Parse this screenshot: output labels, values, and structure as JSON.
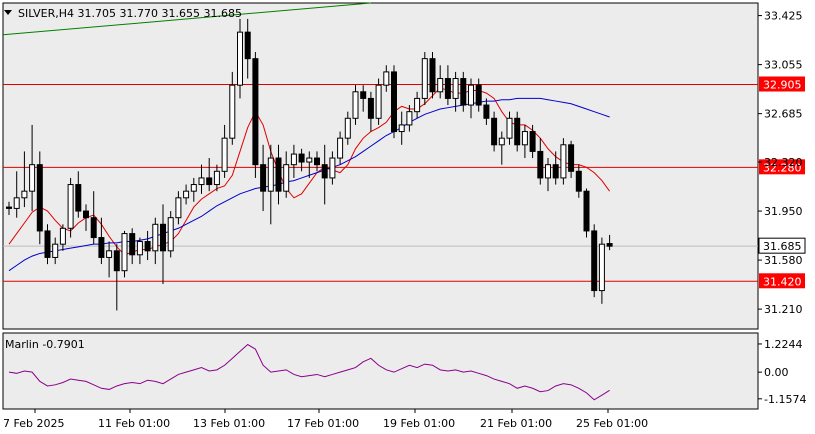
{
  "header": {
    "symbol_line": "SILVER,H4  31.705 31.770 31.655 31.685"
  },
  "indicator": {
    "label": "Marlin -0.7901"
  },
  "colors": {
    "background": "#ffffff",
    "plot_bg": "#ececec",
    "level_line": "#e00000",
    "level_label_bg": "#ff0000",
    "ma_fast": "#e00000",
    "ma_slow": "#0000cc",
    "trend_line": "#008000",
    "oscillator": "#8b008b",
    "price_label_bg": "#ffffff"
  },
  "chart_data": [
    {
      "type": "candlestick",
      "title": "SILVER,H4",
      "ohlc_current": {
        "open": 31.705,
        "high": 31.77,
        "low": 31.655,
        "close": 31.685
      },
      "y_ticks": [
        "33.425",
        "33.055",
        "32.685",
        "32.320",
        "31.950",
        "31.580",
        "31.210"
      ],
      "ylim": [
        31.06,
        33.52
      ],
      "x_ticks": [
        "7 Feb 2025",
        "11 Feb 01:00",
        "13 Feb 01:00",
        "17 Feb 01:00",
        "19 Feb 01:00",
        "21 Feb 01:00",
        "25 Feb 01:00"
      ],
      "horizontal_levels": [
        {
          "value": 32.905,
          "label": "32.905"
        },
        {
          "value": 32.28,
          "label": "32.280"
        },
        {
          "value": 31.42,
          "label": "31.420"
        }
      ],
      "current_price": {
        "value": 31.685,
        "label": "31.685"
      },
      "candles": [
        [
          31.98,
          32.02,
          31.92,
          31.97
        ],
        [
          31.97,
          32.25,
          31.9,
          32.05
        ],
        [
          32.05,
          32.4,
          31.98,
          32.1
        ],
        [
          32.1,
          32.6,
          31.95,
          32.3
        ],
        [
          32.3,
          32.4,
          31.7,
          31.8
        ],
        [
          31.8,
          31.85,
          31.55,
          31.6
        ],
        [
          31.6,
          31.75,
          31.55,
          31.7
        ],
        [
          31.7,
          31.85,
          31.65,
          31.82
        ],
        [
          31.82,
          32.2,
          31.75,
          32.15
        ],
        [
          32.15,
          32.25,
          31.9,
          31.95
        ],
        [
          31.95,
          32.0,
          31.8,
          31.9
        ],
        [
          31.9,
          32.1,
          31.7,
          31.75
        ],
        [
          31.75,
          31.9,
          31.55,
          31.6
        ],
        [
          31.6,
          31.72,
          31.45,
          31.65
        ],
        [
          31.65,
          31.7,
          31.2,
          31.5
        ],
        [
          31.5,
          31.8,
          31.45,
          31.78
        ],
        [
          31.78,
          31.82,
          31.55,
          31.62
        ],
        [
          31.62,
          31.75,
          31.55,
          31.72
        ],
        [
          31.72,
          31.8,
          31.58,
          31.65
        ],
        [
          31.65,
          31.9,
          31.55,
          31.85
        ],
        [
          31.85,
          32.0,
          31.4,
          31.65
        ],
        [
          31.65,
          31.95,
          31.6,
          31.9
        ],
        [
          31.9,
          32.1,
          31.85,
          32.05
        ],
        [
          32.05,
          32.15,
          32.0,
          32.1
        ],
        [
          32.1,
          32.2,
          32.02,
          32.15
        ],
        [
          32.15,
          32.3,
          32.08,
          32.2
        ],
        [
          32.2,
          32.35,
          32.1,
          32.15
        ],
        [
          32.15,
          32.3,
          32.1,
          32.25
        ],
        [
          32.25,
          32.6,
          32.2,
          32.5
        ],
        [
          32.5,
          33.0,
          32.45,
          32.9
        ],
        [
          32.9,
          33.4,
          32.8,
          33.3
        ],
        [
          33.3,
          33.4,
          32.95,
          33.1
        ],
        [
          33.1,
          33.15,
          32.2,
          32.3
        ],
        [
          32.3,
          32.45,
          31.95,
          32.1
        ],
        [
          32.1,
          32.45,
          31.85,
          32.35
        ],
        [
          32.35,
          32.45,
          32.0,
          32.1
        ],
        [
          32.1,
          32.4,
          32.05,
          32.3
        ],
        [
          32.3,
          32.45,
          32.2,
          32.38
        ],
        [
          32.38,
          32.42,
          32.25,
          32.32
        ],
        [
          32.32,
          32.4,
          32.2,
          32.35
        ],
        [
          32.35,
          32.4,
          32.25,
          32.3
        ],
        [
          32.3,
          32.45,
          32.0,
          32.2
        ],
        [
          32.2,
          32.4,
          32.15,
          32.35
        ],
        [
          32.35,
          32.55,
          32.3,
          32.5
        ],
        [
          32.5,
          32.7,
          32.45,
          32.65
        ],
        [
          32.65,
          32.9,
          32.6,
          32.85
        ],
        [
          32.85,
          32.9,
          32.7,
          32.8
        ],
        [
          32.8,
          32.85,
          32.55,
          32.65
        ],
        [
          32.65,
          32.95,
          32.6,
          32.9
        ],
        [
          32.9,
          33.05,
          32.85,
          33.0
        ],
        [
          33.0,
          33.05,
          32.5,
          32.55
        ],
        [
          32.55,
          32.7,
          32.45,
          32.6
        ],
        [
          32.6,
          32.75,
          32.55,
          32.7
        ],
        [
          32.7,
          32.85,
          32.65,
          32.8
        ],
        [
          32.8,
          33.15,
          32.75,
          33.1
        ],
        [
          33.1,
          33.15,
          32.8,
          32.85
        ],
        [
          32.85,
          33.05,
          32.8,
          32.95
        ],
        [
          32.95,
          33.05,
          32.75,
          32.8
        ],
        [
          32.8,
          33.0,
          32.7,
          32.95
        ],
        [
          32.95,
          33.0,
          32.7,
          32.75
        ],
        [
          32.75,
          32.95,
          32.65,
          32.9
        ],
        [
          32.9,
          32.95,
          32.7,
          32.75
        ],
        [
          32.75,
          32.8,
          32.6,
          32.65
        ],
        [
          32.65,
          32.7,
          32.4,
          32.45
        ],
        [
          32.45,
          32.55,
          32.3,
          32.5
        ],
        [
          32.5,
          32.7,
          32.45,
          32.65
        ],
        [
          32.65,
          32.7,
          32.4,
          32.45
        ],
        [
          32.45,
          32.6,
          32.35,
          32.55
        ],
        [
          32.55,
          32.6,
          32.35,
          32.4
        ],
        [
          32.4,
          32.5,
          32.15,
          32.2
        ],
        [
          32.2,
          32.35,
          32.1,
          32.3
        ],
        [
          32.3,
          32.4,
          32.15,
          32.2
        ],
        [
          32.2,
          32.5,
          32.15,
          32.45
        ],
        [
          32.45,
          32.48,
          32.2,
          32.25
        ],
        [
          32.25,
          32.3,
          32.05,
          32.1
        ],
        [
          32.1,
          32.12,
          31.75,
          31.8
        ],
        [
          31.8,
          31.85,
          31.3,
          31.35
        ],
        [
          31.35,
          31.75,
          31.25,
          31.7
        ],
        [
          31.705,
          31.77,
          31.655,
          31.685
        ]
      ],
      "ma_fast": [
        31.7,
        31.78,
        31.86,
        31.94,
        31.98,
        31.95,
        31.88,
        31.82,
        31.8,
        31.86,
        31.9,
        31.92,
        31.85,
        31.76,
        31.68,
        31.62,
        31.64,
        31.66,
        31.66,
        31.68,
        31.7,
        31.72,
        31.78,
        31.88,
        31.98,
        32.04,
        32.08,
        32.12,
        32.14,
        32.22,
        32.4,
        32.58,
        32.7,
        32.6,
        32.4,
        32.25,
        32.12,
        32.05,
        32.08,
        32.16,
        32.24,
        32.28,
        32.26,
        32.24,
        32.3,
        32.42,
        32.5,
        32.55,
        32.58,
        32.62,
        32.7,
        32.74,
        32.72,
        32.72,
        32.76,
        32.82,
        32.88,
        32.86,
        32.84,
        32.84,
        32.86,
        32.86,
        32.84,
        32.8,
        32.7,
        32.62,
        32.6,
        32.6,
        32.56,
        32.5,
        32.42,
        32.36,
        32.32,
        32.3,
        32.3,
        32.28,
        32.24,
        32.18,
        32.1
      ],
      "ma_slow": [
        31.5,
        31.54,
        31.58,
        31.61,
        31.63,
        31.64,
        31.65,
        31.66,
        31.67,
        31.68,
        31.69,
        31.7,
        31.7,
        31.71,
        31.71,
        31.72,
        31.72,
        31.73,
        31.74,
        31.76,
        31.78,
        31.8,
        31.82,
        31.85,
        31.88,
        31.91,
        31.95,
        31.99,
        32.02,
        32.05,
        32.08,
        32.1,
        32.12,
        32.13,
        32.14,
        32.15,
        32.17,
        32.18,
        32.2,
        32.22,
        32.24,
        32.26,
        32.28,
        32.3,
        32.33,
        32.36,
        32.4,
        32.44,
        32.48,
        32.52,
        32.55,
        32.58,
        32.62,
        32.65,
        32.68,
        32.7,
        32.72,
        32.73,
        32.74,
        32.75,
        32.76,
        32.77,
        32.78,
        32.78,
        32.79,
        32.79,
        32.8,
        32.8,
        32.8,
        32.8,
        32.79,
        32.78,
        32.77,
        32.76,
        32.74,
        32.72,
        32.7,
        32.68,
        32.66
      ],
      "trend_line": {
        "from": [
          0,
          33.28
        ],
        "to": [
          47,
          33.52
        ]
      }
    },
    {
      "type": "line",
      "title": "Marlin",
      "current_value": -0.7901,
      "y_ticks": [
        "1.2244",
        "0.00",
        "-1.1574"
      ],
      "ylim": [
        -1.6,
        1.7
      ],
      "values": [
        0.0,
        -0.05,
        0.05,
        0.0,
        -0.4,
        -0.6,
        -0.55,
        -0.45,
        -0.3,
        -0.35,
        -0.4,
        -0.55,
        -0.7,
        -0.75,
        -0.6,
        -0.5,
        -0.45,
        -0.5,
        -0.35,
        -0.4,
        -0.5,
        -0.3,
        -0.1,
        0.0,
        0.1,
        0.2,
        0.05,
        0.1,
        0.3,
        0.6,
        0.9,
        1.2,
        1.0,
        0.3,
        0.0,
        0.05,
        0.1,
        -0.1,
        -0.2,
        -0.15,
        -0.1,
        -0.2,
        -0.1,
        0.0,
        0.1,
        0.2,
        0.45,
        0.6,
        0.3,
        0.1,
        0.0,
        0.15,
        0.3,
        0.2,
        0.35,
        0.3,
        0.1,
        0.05,
        0.1,
        0.0,
        0.05,
        -0.05,
        -0.15,
        -0.3,
        -0.4,
        -0.5,
        -0.7,
        -0.6,
        -0.7,
        -0.85,
        -0.8,
        -0.6,
        -0.5,
        -0.55,
        -0.7,
        -0.9,
        -1.2,
        -1.0,
        -0.79
      ]
    }
  ]
}
